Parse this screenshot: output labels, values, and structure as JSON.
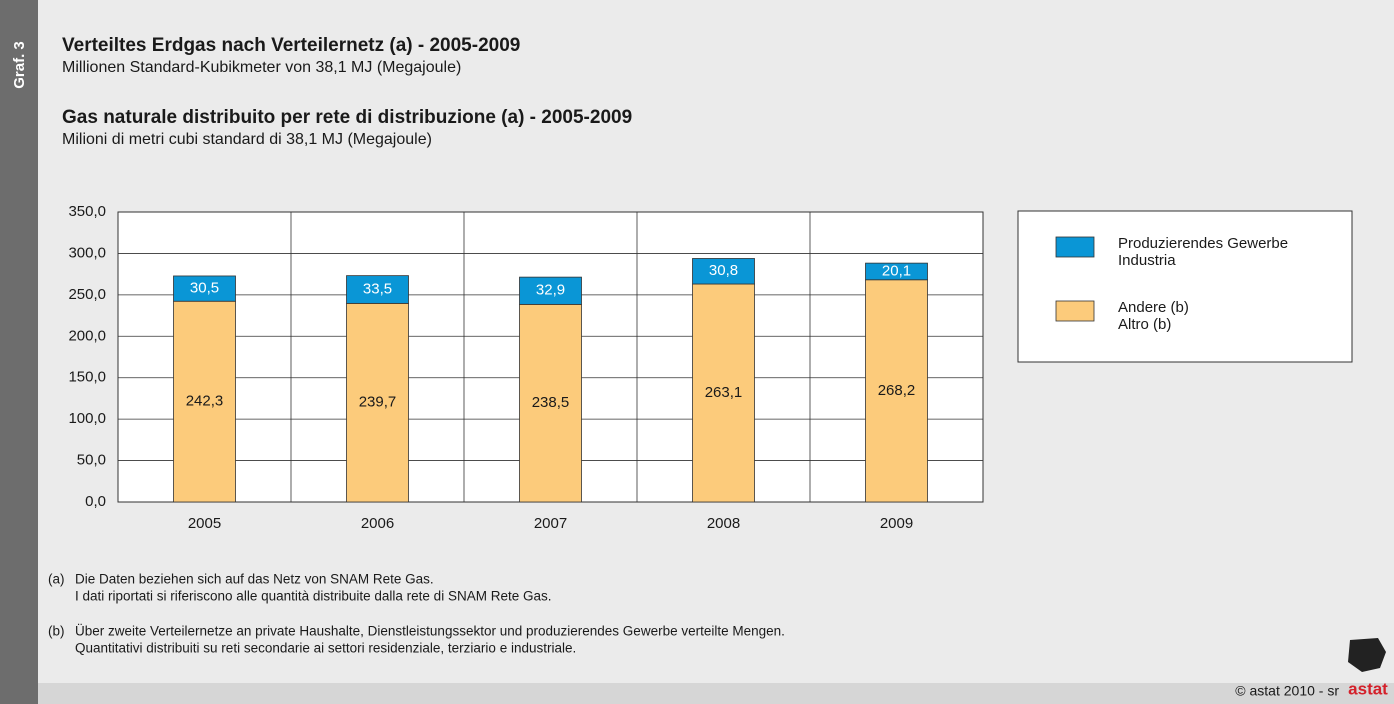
{
  "side_label": "Graf. 3",
  "chart_data": {
    "type": "stacked_bar",
    "title_de": "Verteiltes Erdgas nach Verteilernetz (a) - 2005-2009",
    "subtitle_de": "Millionen Standard-Kubikmeter von 38,1 MJ (Megajoule)",
    "title_it": "Gas naturale distribuito per rete di distribuzione (a) - 2005-2009",
    "subtitle_it": "Milioni di metri cubi standard di 38,1 MJ (Megajoule)",
    "categories": [
      "2005",
      "2006",
      "2007",
      "2008",
      "2009"
    ],
    "series": [
      {
        "name": "Produzierendes Gewerbe",
        "name_it": "Industria",
        "color": "#0a96d6",
        "values": [
          30.5,
          33.5,
          32.9,
          30.8,
          20.1
        ],
        "value_labels": [
          "30,5",
          "33,5",
          "32,9",
          "30,8",
          "20,1"
        ]
      },
      {
        "name": "Andere (b)",
        "name_it": "Altro (b)",
        "color": "#fccb7b",
        "values": [
          242.3,
          239.7,
          238.5,
          263.1,
          268.2
        ],
        "value_labels": [
          "242,3",
          "239,7",
          "238,5",
          "263,1",
          "268,2"
        ]
      }
    ],
    "ylim": [
      0,
      350
    ],
    "yticks": [
      {
        "value": 0,
        "label": "0,0"
      },
      {
        "value": 50,
        "label": "50,0"
      },
      {
        "value": 100,
        "label": "100,0"
      },
      {
        "value": 150,
        "label": "150,0"
      },
      {
        "value": 200,
        "label": "200,0"
      },
      {
        "value": 250,
        "label": "250,0"
      },
      {
        "value": 300,
        "label": "300,0"
      },
      {
        "value": 350,
        "label": "350,0"
      }
    ],
    "grid": true,
    "legend": "right"
  },
  "notes": [
    {
      "marker": "(a)",
      "lines": [
        "Die Daten beziehen sich auf das Netz von SNAM Rete Gas.",
        "I dati riportati si riferiscono alle quantità distribuite dalla rete di SNAM Rete Gas."
      ]
    },
    {
      "marker": "(b)",
      "lines": [
        "Über zweite Verteilernetze an private Haushalte, Dienstleistungssektor und produzierendes Gewerbe verteilte Mengen.",
        "Quantitativi distribuiti su reti secondarie ai settori residenziale, terziario e industriale."
      ]
    }
  ],
  "credit": "© astat 2010 - sr",
  "logo": "astat"
}
